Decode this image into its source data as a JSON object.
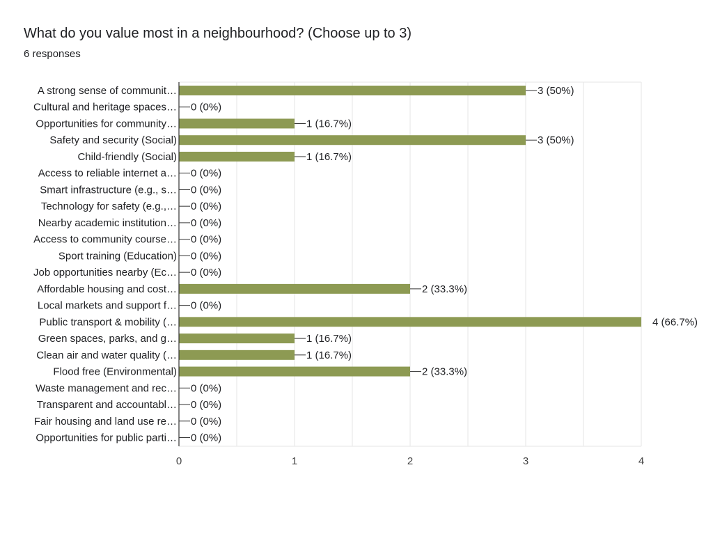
{
  "question": {
    "title": "What do you value most in a neighbourhood? (Choose up to 3)",
    "responses": "6 responses"
  },
  "colors": {
    "bar": "#8d9a53",
    "grid": "#e6e6e6",
    "axis": "#333333",
    "text": "#202124",
    "tick_text": "#444444"
  },
  "chart_data": {
    "type": "bar",
    "orientation": "horizontal",
    "title": "What do you value most in a neighbourhood? (Choose up to 3)",
    "subtitle": "6 responses",
    "xlim": [
      0,
      4
    ],
    "xticks": [
      0,
      1,
      2,
      3,
      4
    ],
    "grid": true,
    "categories": [
      "A strong sense of communit…",
      "Cultural and heritage spaces…",
      "Opportunities for community…",
      "Safety and security (Social)",
      "Child-friendly (Social)",
      "Access to reliable internet a…",
      "Smart infrastructure (e.g., s…",
      "Technology for safety (e.g.,…",
      "Nearby academic institution…",
      "Access to community course…",
      "Sport training (Education)",
      "Job opportunities nearby (Ec…",
      "Affordable housing and cost…",
      "Local markets and support f…",
      "Public transport & mobility (…",
      "Green spaces, parks, and g…",
      "Clean air and water quality (…",
      "Flood free (Environmental)",
      "Waste management and rec…",
      "Transparent and accountabl…",
      "Fair housing and land use re…",
      "Opportunities for public parti…"
    ],
    "values": [
      3,
      0,
      1,
      3,
      1,
      0,
      0,
      0,
      0,
      0,
      0,
      0,
      2,
      0,
      4,
      1,
      1,
      2,
      0,
      0,
      0,
      0
    ],
    "labels": [
      "3 (50%)",
      "0 (0%)",
      "1 (16.7%)",
      "3 (50%)",
      "1 (16.7%)",
      "0 (0%)",
      "0 (0%)",
      "0 (0%)",
      "0 (0%)",
      "0 (0%)",
      "0 (0%)",
      "0 (0%)",
      "2 (33.3%)",
      "0 (0%)",
      "4 (66.7%)",
      "1 (16.7%)",
      "1 (16.7%)",
      "2 (33.3%)",
      "0 (0%)",
      "0 (0%)",
      "0 (0%)",
      "0 (0%)"
    ]
  }
}
